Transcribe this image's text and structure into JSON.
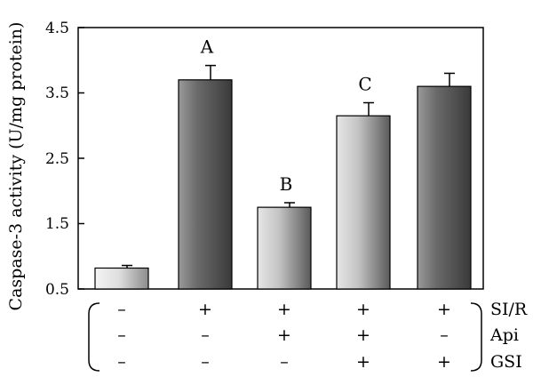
{
  "chart_data": {
    "type": "bar",
    "title": "",
    "xlabel": "",
    "ylabel": "Caspase-3 activity (U/mg protein)",
    "ylim": [
      0.5,
      4.5
    ],
    "yticks": [
      0.5,
      1.5,
      2.5,
      3.5,
      4.5
    ],
    "ytick_labels": [
      "0.5",
      "1.5",
      "2.5",
      "3.5",
      "4.5"
    ],
    "grid": false,
    "values": [
      0.82,
      3.7,
      1.75,
      3.15,
      3.6
    ],
    "errors": [
      0.04,
      0.22,
      0.07,
      0.2,
      0.2
    ],
    "annotations": [
      "",
      "A",
      "B",
      "C",
      ""
    ],
    "bar_fill": [
      "light",
      "dark",
      "light",
      "light",
      "dark"
    ],
    "condition_rows": [
      {
        "label": "SI/R",
        "marks": [
          "–",
          "+",
          "+",
          "+",
          "+"
        ]
      },
      {
        "label": "Api",
        "marks": [
          "–",
          "–",
          "+",
          "+",
          "–"
        ]
      },
      {
        "label": "GSI",
        "marks": [
          "–",
          "–",
          "–",
          "+",
          "+"
        ]
      }
    ],
    "colors": {
      "light_bar": "#d6d6d6",
      "dark_bar": "#5e5e5e"
    }
  }
}
